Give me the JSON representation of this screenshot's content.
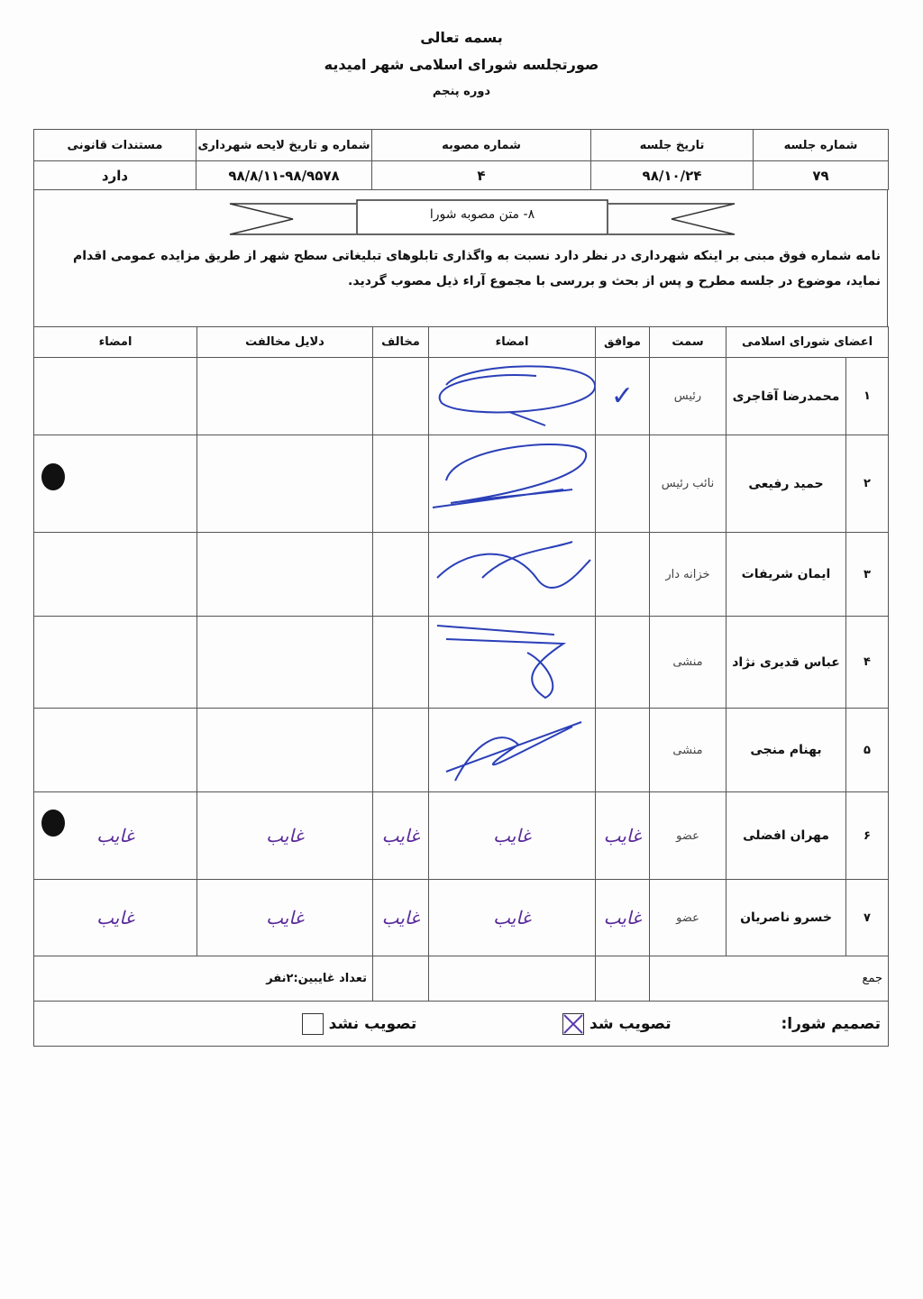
{
  "header": {
    "invocation": "بسمه تعالی",
    "title": "صورتجلسه شورای اسلامی شهر امیدیه",
    "term": "دوره پنجم"
  },
  "info_table": {
    "headers": [
      "شماره جلسه",
      "تاریخ جلسه",
      "شماره مصوبه",
      "شماره و تاریخ لایحه شهرداری",
      "مستندات قانونی"
    ],
    "values": [
      "۷۹",
      "۹۸/۱۰/۲۴",
      "۴",
      "۹۸/۸/۱۱-۹۸/۹۵۷۸",
      "دارد"
    ]
  },
  "resolution": {
    "banner": "۸- متن مصوبه شورا",
    "text": "نامه شماره فوق مبنی بر اینکه شهرداری در نظر دارد نسبت به واگذاری تابلوهای تبلیغاتی سطح شهر از طریق مزایده عمومی اقدام نماید، موضوع در جلسه مطرح و پس از بحث و بررسی با مجموع آراء ذیل مصوب گردید."
  },
  "members_table": {
    "headers": [
      "اعضای شورای اسلامی",
      "سمت",
      "موافق",
      "امضاء",
      "مخالف",
      "دلایل مخالفت",
      "امضاء"
    ],
    "rows": [
      {
        "num": "۱",
        "name": "محمدرضا آقاجری",
        "role": "رئیس",
        "agree": "✓",
        "signed": true
      },
      {
        "num": "۲",
        "name": "حمید رفیعی",
        "role": "نائب رئیس",
        "agree": "",
        "signed": true
      },
      {
        "num": "۳",
        "name": "ایمان شریفات",
        "role": "خزانه دار",
        "agree": "",
        "signed": true
      },
      {
        "num": "۴",
        "name": "عباس قدیری نژاد",
        "role": "منشی",
        "agree": "",
        "signed": true
      },
      {
        "num": "۵",
        "name": "بهنام منجی",
        "role": "منشی",
        "agree": "",
        "signed": true
      },
      {
        "num": "۶",
        "name": "مهران افضلی",
        "role": "عضو",
        "absent": "غایب"
      },
      {
        "num": "۷",
        "name": "خسرو ناصریان",
        "role": "عضو",
        "absent": "غایب"
      }
    ],
    "total_label": "جمع",
    "absent_count": "تعداد غایبین:۲نفر"
  },
  "decision": {
    "label": "تصمیم شورا:",
    "approved": "تصویب شد",
    "rejected": "تصویب نشد",
    "selected": "approved"
  },
  "colors": {
    "signature": "#2a3fb8",
    "absent_ink": "#5a2a9a"
  }
}
